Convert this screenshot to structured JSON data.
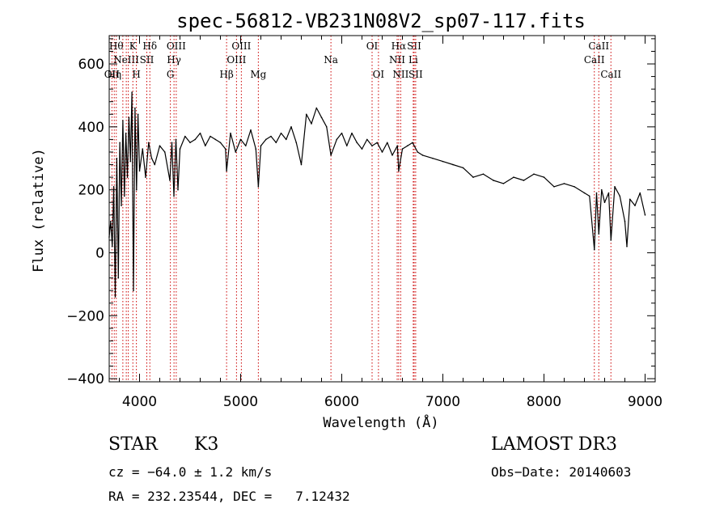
{
  "chart_data": {
    "type": "line",
    "title": "spec-56812-VB231N08V2_sp07-117.fits",
    "xlabel": "Wavelength (Å)",
    "ylabel": "Flux (relative)",
    "xlim": [
      3700,
      9100
    ],
    "ylim": [
      -410,
      690
    ],
    "x_ticks": [
      4000,
      5000,
      6000,
      7000,
      8000,
      9000
    ],
    "y_ticks": [
      -400,
      -200,
      0,
      200,
      400,
      600
    ],
    "x_tick_labels": [
      "4000",
      "5000",
      "6000",
      "7000",
      "8000",
      "9000"
    ],
    "y_tick_labels": [
      "−400",
      "−200",
      "0",
      "200",
      "400",
      "600"
    ],
    "grid": false,
    "series": [
      {
        "name": "flux",
        "x": [
          3700,
          3715,
          3730,
          3745,
          3760,
          3775,
          3790,
          3805,
          3820,
          3835,
          3850,
          3865,
          3880,
          3895,
          3910,
          3925,
          3940,
          3955,
          3970,
          3985,
          4000,
          4030,
          4060,
          4090,
          4120,
          4150,
          4200,
          4250,
          4300,
          4320,
          4340,
          4360,
          4380,
          4400,
          4450,
          4500,
          4550,
          4600,
          4650,
          4700,
          4750,
          4800,
          4850,
          4861,
          4900,
          4950,
          5000,
          5050,
          5100,
          5150,
          5175,
          5200,
          5250,
          5300,
          5350,
          5400,
          5450,
          5500,
          5550,
          5600,
          5650,
          5700,
          5750,
          5800,
          5850,
          5893,
          5950,
          6000,
          6050,
          6100,
          6150,
          6200,
          6250,
          6300,
          6350,
          6400,
          6450,
          6500,
          6550,
          6563,
          6600,
          6650,
          6700,
          6750,
          6800,
          6900,
          7000,
          7100,
          7200,
          7300,
          7400,
          7500,
          7600,
          7700,
          7800,
          7900,
          8000,
          8100,
          8200,
          8300,
          8400,
          8450,
          8498,
          8520,
          8542,
          8570,
          8600,
          8640,
          8662,
          8700,
          8750,
          8800,
          8820,
          8850,
          8900,
          8950,
          9000
        ],
        "y": [
          50,
          100,
          20,
          210,
          -140,
          300,
          -80,
          350,
          150,
          420,
          180,
          380,
          240,
          430,
          290,
          510,
          -120,
          460,
          200,
          440,
          260,
          330,
          240,
          350,
          300,
          280,
          340,
          320,
          230,
          350,
          180,
          360,
          200,
          330,
          370,
          350,
          360,
          380,
          340,
          370,
          360,
          350,
          330,
          260,
          380,
          320,
          360,
          340,
          390,
          330,
          210,
          340,
          360,
          370,
          350,
          380,
          360,
          400,
          350,
          280,
          440,
          410,
          460,
          430,
          400,
          310,
          360,
          380,
          340,
          380,
          350,
          330,
          360,
          340,
          350,
          320,
          350,
          310,
          340,
          260,
          330,
          340,
          350,
          320,
          310,
          300,
          290,
          280,
          270,
          240,
          250,
          230,
          220,
          240,
          230,
          250,
          240,
          210,
          220,
          210,
          190,
          180,
          10,
          190,
          60,
          200,
          160,
          190,
          40,
          210,
          180,
          100,
          20,
          170,
          150,
          190,
          120
        ]
      }
    ],
    "line_marks": [
      {
        "w": 3727,
        "label": "OII",
        "row": 3
      },
      {
        "w": 3750,
        "label": "Hη",
        "row": 3
      },
      {
        "w": 3770,
        "label": "Hθ",
        "row": 1
      },
      {
        "w": 3835,
        "label": "",
        "row": 0
      },
      {
        "w": 3869,
        "label": "NeIII",
        "row": 2
      },
      {
        "w": 3889,
        "label": "",
        "row": 0
      },
      {
        "w": 3934,
        "label": "K",
        "row": 1
      },
      {
        "w": 3969,
        "label": "H",
        "row": 3
      },
      {
        "w": 4072,
        "label": "SII",
        "row": 2
      },
      {
        "w": 4102,
        "label": "Hδ",
        "row": 1
      },
      {
        "w": 4305,
        "label": "G",
        "row": 3
      },
      {
        "w": 4341,
        "label": "Hγ",
        "row": 2
      },
      {
        "w": 4363,
        "label": "OIII",
        "row": 1
      },
      {
        "w": 4861,
        "label": "Hβ",
        "row": 3
      },
      {
        "w": 4959,
        "label": "OIII",
        "row": 2
      },
      {
        "w": 5007,
        "label": "OIII",
        "row": 1
      },
      {
        "w": 5175,
        "label": "Mg",
        "row": 3
      },
      {
        "w": 5893,
        "label": "Na",
        "row": 2
      },
      {
        "w": 6300,
        "label": "OI",
        "row": 1
      },
      {
        "w": 6363,
        "label": "OI",
        "row": 3
      },
      {
        "w": 6548,
        "label": "NII",
        "row": 2
      },
      {
        "w": 6563,
        "label": "Hα",
        "row": 1
      },
      {
        "w": 6583,
        "label": "NII",
        "row": 3
      },
      {
        "w": 6707,
        "label": "Li",
        "row": 2
      },
      {
        "w": 6716,
        "label": "SII",
        "row": 1
      },
      {
        "w": 6731,
        "label": "SII",
        "row": 3
      },
      {
        "w": 8498,
        "label": "CaII",
        "row": 2
      },
      {
        "w": 8542,
        "label": "CaII",
        "row": 1
      },
      {
        "w": 8662,
        "label": "CaII",
        "row": 3
      }
    ]
  },
  "info": {
    "class_label": "STAR",
    "subclass": "K3",
    "survey": "LAMOST DR3",
    "redshift_line": "cz = −64.0 ± 1.2 km/s",
    "obs_date_line": "Obs−Date: 20140603",
    "coords_line": "RA = 232.23544, DEC =   7.12432"
  },
  "colors": {
    "axis": "#000000",
    "line": "#000000",
    "marker": "#cc0000"
  }
}
